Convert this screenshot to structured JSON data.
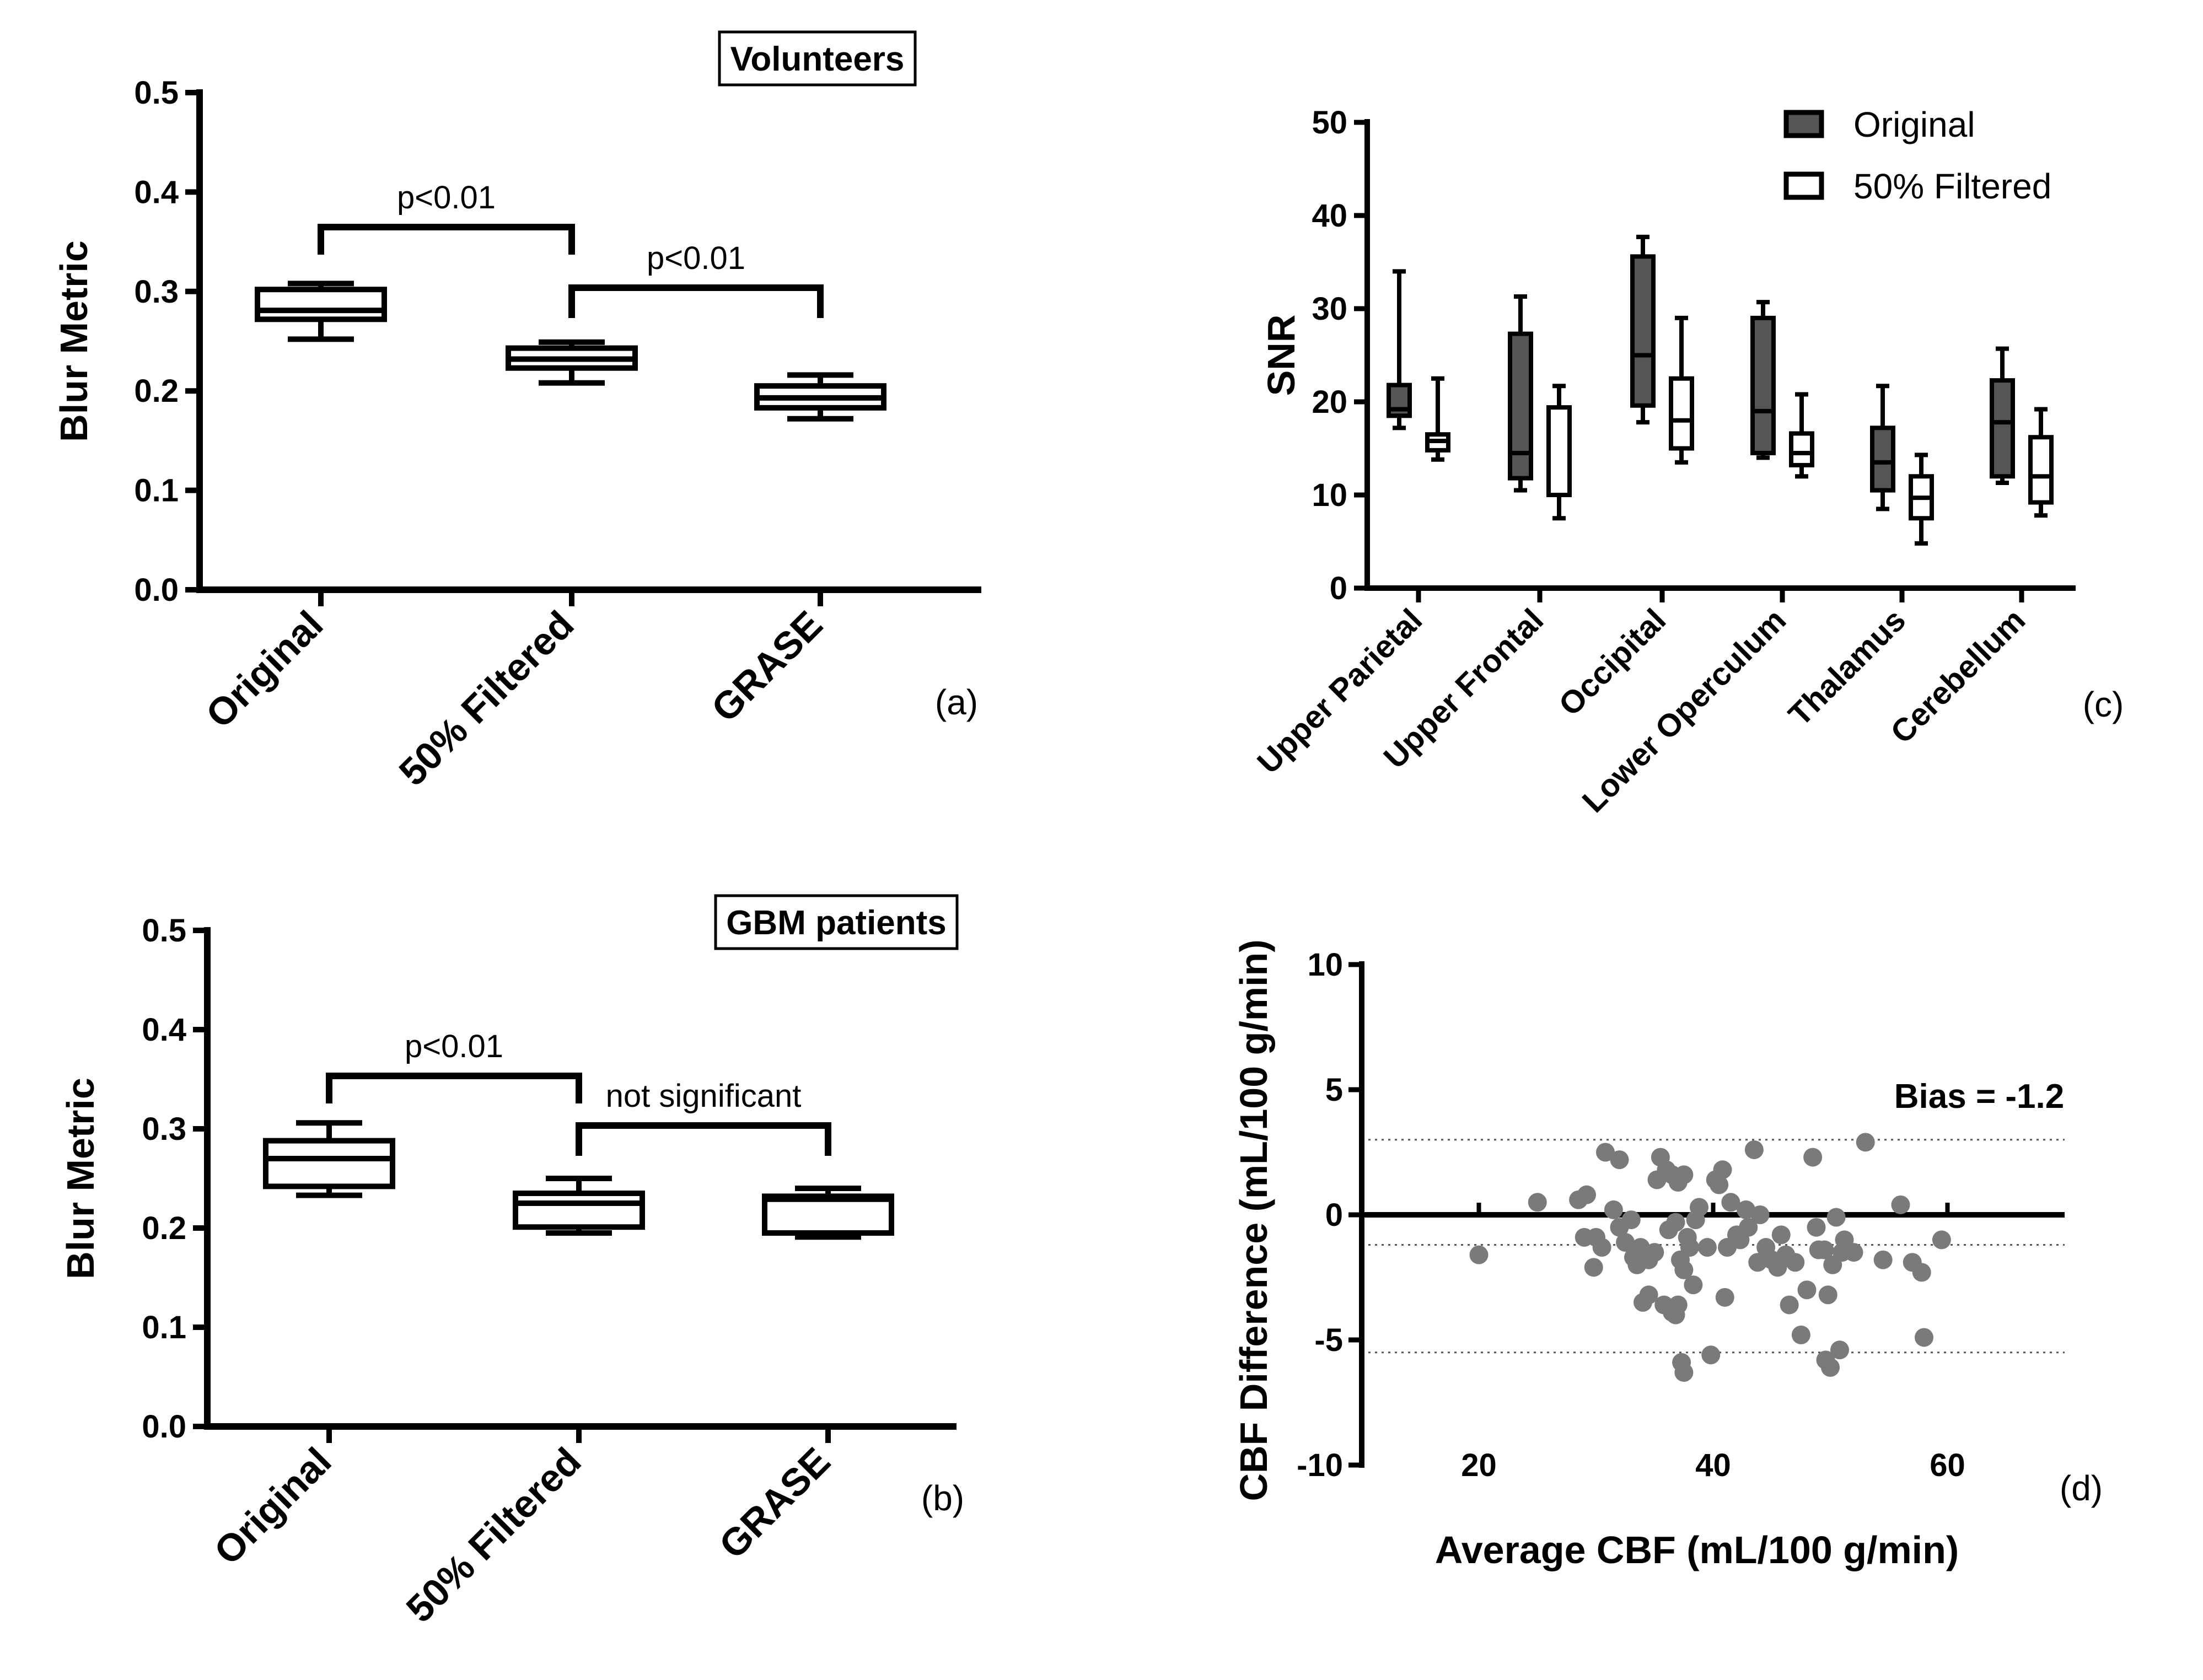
{
  "figure": {
    "panels": [
      {
        "id": "a",
        "panel_label": "(a)",
        "title": "Volunteers",
        "ylabel": "Blur Metric",
        "yticks": [
          "0.0",
          "0.1",
          "0.2",
          "0.3",
          "0.4",
          "0.5"
        ],
        "categories": [
          "Original",
          "50% Filtered",
          "GRASE"
        ],
        "comparisons": [
          {
            "from": 0,
            "to": 1,
            "label": "p<0.01"
          },
          {
            "from": 1,
            "to": 2,
            "label": "p<0.01"
          }
        ]
      },
      {
        "id": "b",
        "panel_label": "(b)",
        "title": "GBM patients",
        "ylabel": "Blur Metric",
        "yticks": [
          "0.0",
          "0.1",
          "0.2",
          "0.3",
          "0.4",
          "0.5"
        ],
        "categories": [
          "Original",
          "50% Filtered",
          "GRASE"
        ],
        "comparisons": [
          {
            "from": 0,
            "to": 1,
            "label": "p<0.01"
          },
          {
            "from": 1,
            "to": 2,
            "label": "not significant"
          }
        ]
      },
      {
        "id": "c",
        "panel_label": "(c)",
        "ylabel": "SNR",
        "yticks": [
          "0",
          "10",
          "20",
          "30",
          "40",
          "50"
        ],
        "legend": [
          "Original",
          "50% Filtered"
        ]
      },
      {
        "id": "d",
        "panel_label": "(d)",
        "xlabel": "Average CBF (mL/100 g/min)",
        "ylabel": "CBF Difference (mL/100 g/min)",
        "xticks": [
          "20",
          "40",
          "60"
        ],
        "yticks": [
          "-10",
          "-5",
          "0",
          "5",
          "10"
        ],
        "bias_label": "Bias = -1.2"
      }
    ]
  },
  "chart_data": [
    {
      "type": "box",
      "panel": "a",
      "title": "Volunteers",
      "ylabel": "Blur Metric",
      "ylim": [
        0,
        0.5
      ],
      "categories": [
        "Original",
        "50% Filtered",
        "GRASE"
      ],
      "boxes": [
        {
          "min": 0.252,
          "q1": 0.272,
          "median": 0.281,
          "q3": 0.302,
          "max": 0.308
        },
        {
          "min": 0.208,
          "q1": 0.223,
          "median": 0.232,
          "q3": 0.243,
          "max": 0.249
        },
        {
          "min": 0.172,
          "q1": 0.183,
          "median": 0.193,
          "q3": 0.205,
          "max": 0.216
        }
      ],
      "annotations": [
        "p<0.01",
        "p<0.01"
      ]
    },
    {
      "type": "box",
      "panel": "b",
      "title": "GBM patients",
      "ylabel": "Blur Metric",
      "ylim": [
        0,
        0.5
      ],
      "categories": [
        "Original",
        "50% Filtered",
        "GRASE"
      ],
      "boxes": [
        {
          "min": 0.233,
          "q1": 0.242,
          "median": 0.27,
          "q3": 0.288,
          "max": 0.306
        },
        {
          "min": 0.195,
          "q1": 0.201,
          "median": 0.225,
          "q3": 0.235,
          "max": 0.25
        },
        {
          "min": 0.191,
          "q1": 0.195,
          "median": 0.229,
          "q3": 0.232,
          "max": 0.24
        }
      ],
      "annotations": [
        "p<0.01",
        "not significant"
      ]
    },
    {
      "type": "box",
      "panel": "c",
      "ylabel": "SNR",
      "ylim": [
        0,
        50
      ],
      "categories": [
        "Upper Parietal",
        "Upper Frontal",
        "Occipital",
        "Lower Operculum",
        "Thalamus",
        "Cerebellum"
      ],
      "series": [
        {
          "name": "Original",
          "color": "#555555",
          "boxes": [
            {
              "min": 17.2,
              "q1": 18.5,
              "median": 19.2,
              "q3": 21.8,
              "max": 34.0
            },
            {
              "min": 10.5,
              "q1": 11.8,
              "median": 14.5,
              "q3": 27.3,
              "max": 31.3
            },
            {
              "min": 17.8,
              "q1": 19.6,
              "median": 25.0,
              "q3": 35.6,
              "max": 37.7
            },
            {
              "min": 14.0,
              "q1": 14.5,
              "median": 19.0,
              "q3": 29.0,
              "max": 30.7
            },
            {
              "min": 8.5,
              "q1": 10.5,
              "median": 13.5,
              "q3": 17.2,
              "max": 21.7
            },
            {
              "min": 11.3,
              "q1": 12.0,
              "median": 17.8,
              "q3": 22.3,
              "max": 25.7
            }
          ]
        },
        {
          "name": "50% Filtered",
          "color": "#ffffff",
          "boxes": [
            {
              "min": 13.8,
              "q1": 14.8,
              "median": 15.8,
              "q3": 16.5,
              "max": 22.5
            },
            {
              "min": 7.5,
              "q1": 10.0,
              "median": 10.0,
              "q3": 19.4,
              "max": 21.7
            },
            {
              "min": 13.5,
              "q1": 15.0,
              "median": 18.0,
              "q3": 22.5,
              "max": 29.0
            },
            {
              "min": 12.0,
              "q1": 13.2,
              "median": 14.5,
              "q3": 16.6,
              "max": 20.8
            },
            {
              "min": 4.8,
              "q1": 7.5,
              "median": 9.7,
              "q3": 12.0,
              "max": 14.3
            },
            {
              "min": 7.8,
              "q1": 9.2,
              "median": 12.0,
              "q3": 16.2,
              "max": 19.2
            }
          ]
        }
      ]
    },
    {
      "type": "scatter",
      "panel": "d",
      "xlabel": "Average CBF (mL/100 g/min)",
      "ylabel": "CBF Difference (mL/100 g/min)",
      "xlim": [
        10,
        70
      ],
      "ylim": [
        -10,
        10
      ],
      "bias": -1.2,
      "limits_of_agreement": [
        3.0,
        -5.5
      ],
      "bias_label": "Bias = -1.2",
      "points": [
        [
          20.0,
          -1.6
        ],
        [
          25.0,
          0.5
        ],
        [
          28.5,
          0.6
        ],
        [
          29.2,
          0.8
        ],
        [
          29.0,
          -0.9
        ],
        [
          30.0,
          -0.9
        ],
        [
          30.5,
          -1.3
        ],
        [
          29.8,
          -2.1
        ],
        [
          30.8,
          2.5
        ],
        [
          32.0,
          2.2
        ],
        [
          31.5,
          0.2
        ],
        [
          32.0,
          -0.5
        ],
        [
          32.5,
          -1.1
        ],
        [
          33.0,
          -0.2
        ],
        [
          33.2,
          -1.7
        ],
        [
          33.5,
          -2.0
        ],
        [
          34.0,
          -3.5
        ],
        [
          33.8,
          -1.3
        ],
        [
          34.5,
          -1.8
        ],
        [
          34.5,
          -3.2
        ],
        [
          35.0,
          -1.5
        ],
        [
          35.5,
          2.3
        ],
        [
          35.2,
          1.4
        ],
        [
          36.0,
          1.8
        ],
        [
          36.2,
          -0.6
        ],
        [
          36.5,
          1.6
        ],
        [
          36.8,
          -0.3
        ],
        [
          37.0,
          1.3
        ],
        [
          37.2,
          1.5
        ],
        [
          37.5,
          1.6
        ],
        [
          37.0,
          -3.6
        ],
        [
          37.2,
          -1.8
        ],
        [
          37.5,
          -2.2
        ],
        [
          37.8,
          -0.9
        ],
        [
          38.0,
          -1.3
        ],
        [
          38.3,
          -2.8
        ],
        [
          38.5,
          -0.2
        ],
        [
          38.8,
          0.3
        ],
        [
          37.5,
          -6.3
        ],
        [
          37.3,
          -5.9
        ],
        [
          36.5,
          -3.9
        ],
        [
          35.8,
          -3.6
        ],
        [
          36.8,
          -4.0
        ],
        [
          39.5,
          -1.3
        ],
        [
          39.8,
          -5.6
        ],
        [
          40.2,
          1.4
        ],
        [
          40.5,
          1.2
        ],
        [
          40.8,
          1.8
        ],
        [
          41.0,
          -3.3
        ],
        [
          41.2,
          -1.3
        ],
        [
          41.5,
          0.5
        ],
        [
          42.0,
          -0.8
        ],
        [
          42.3,
          -1.0
        ],
        [
          42.8,
          0.2
        ],
        [
          43.0,
          -0.5
        ],
        [
          43.5,
          2.6
        ],
        [
          43.8,
          -1.9
        ],
        [
          44.0,
          0.0
        ],
        [
          44.5,
          -1.3
        ],
        [
          45.0,
          -1.8
        ],
        [
          45.5,
          -2.1
        ],
        [
          45.8,
          -0.8
        ],
        [
          46.2,
          -1.6
        ],
        [
          46.5,
          -3.6
        ],
        [
          47.0,
          -1.9
        ],
        [
          47.5,
          -4.8
        ],
        [
          48.0,
          -3.0
        ],
        [
          48.5,
          2.3
        ],
        [
          48.8,
          -0.5
        ],
        [
          49.0,
          -1.4
        ],
        [
          49.5,
          -1.4
        ],
        [
          49.8,
          -3.2
        ],
        [
          49.6,
          -5.8
        ],
        [
          50.0,
          -6.1
        ],
        [
          50.2,
          -2.0
        ],
        [
          50.5,
          -0.1
        ],
        [
          50.8,
          -5.4
        ],
        [
          51.0,
          -1.5
        ],
        [
          51.2,
          -1.0
        ],
        [
          52.0,
          -1.5
        ],
        [
          53.0,
          2.9
        ],
        [
          54.5,
          -1.8
        ],
        [
          56.0,
          0.4
        ],
        [
          57.0,
          -1.9
        ],
        [
          57.8,
          -2.3
        ],
        [
          58.0,
          -4.9
        ],
        [
          59.5,
          -1.0
        ]
      ]
    }
  ]
}
